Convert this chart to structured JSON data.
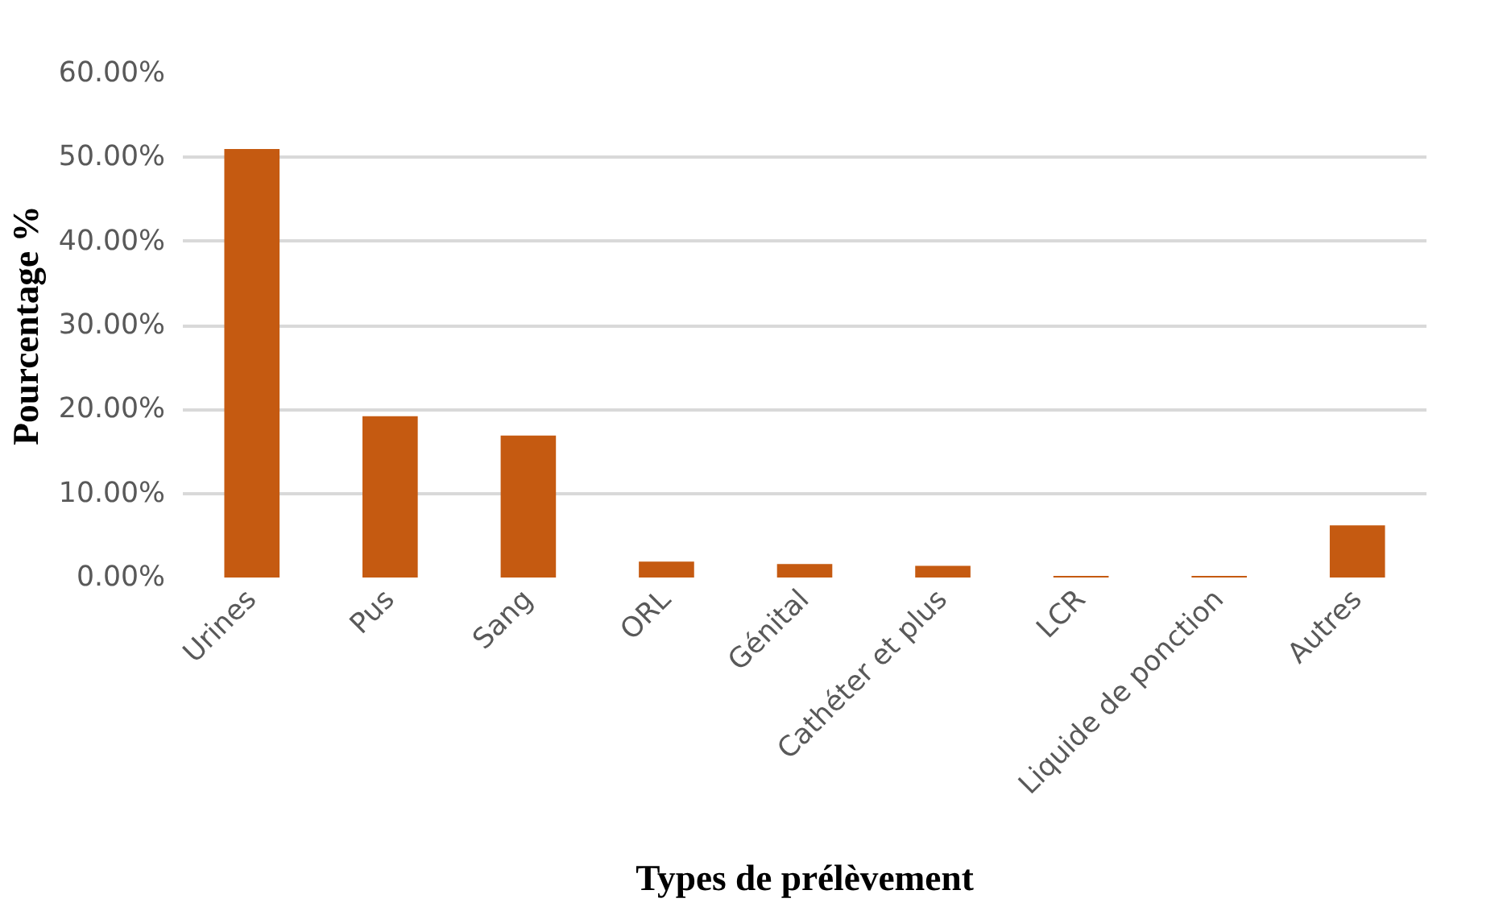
{
  "chart_data": {
    "type": "bar",
    "xlabel": "Types de prélèvement",
    "ylabel": "Pourcentage %",
    "categories": [
      "Urines",
      "Pus",
      "Sang",
      "ORL",
      "Génital",
      "Cathéter et plus",
      "LCR",
      "Liquide de ponction",
      "Autres"
    ],
    "values": [
      51.0,
      19.2,
      16.9,
      1.9,
      1.6,
      1.4,
      0.2,
      0.2,
      6.2
    ],
    "color": "#c55a11",
    "ylim": [
      0,
      60
    ],
    "yticks": [
      {
        "value": 0,
        "label": "0.00%"
      },
      {
        "value": 10,
        "label": "10.00%"
      },
      {
        "value": 20,
        "label": "20.00%"
      },
      {
        "value": 30,
        "label": "30.00%"
      },
      {
        "value": 40,
        "label": "40.00%"
      },
      {
        "value": 50,
        "label": "50.00%"
      },
      {
        "value": 60,
        "label": "60.00%"
      }
    ],
    "grid": "y"
  }
}
